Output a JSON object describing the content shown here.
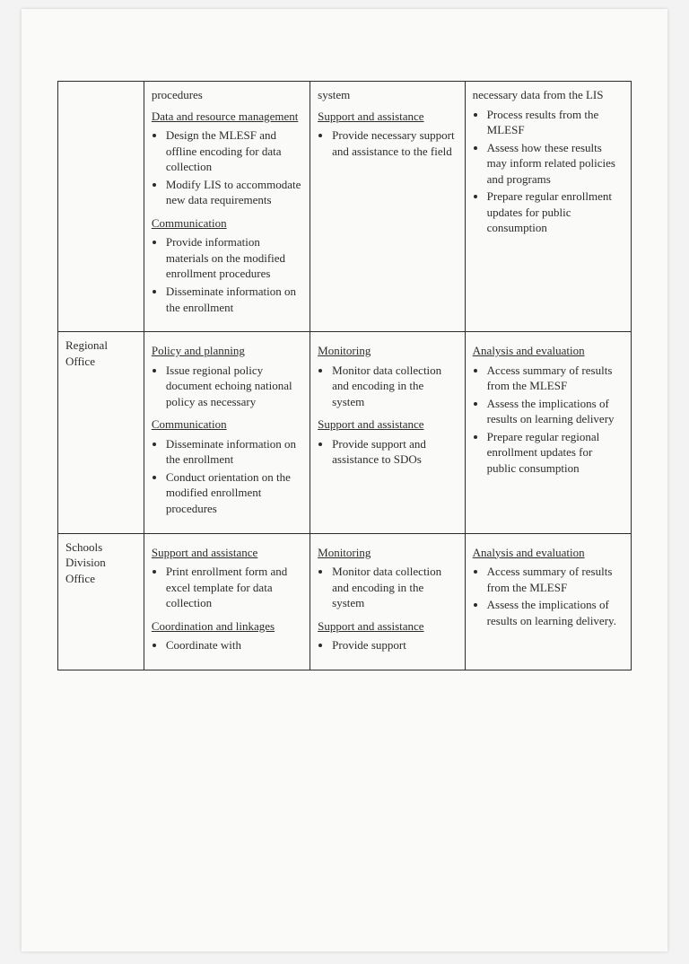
{
  "type": "table",
  "page_background": "#fafaf8",
  "border_color": "#2c2c2c",
  "text_color": "#2c2c2c",
  "font_family": "Georgia, serif",
  "font_size_pt": 10,
  "columns_pct": [
    15,
    29,
    27,
    29
  ],
  "rows": [
    {
      "office": "",
      "col1": {
        "lead": "procedures",
        "sections": [
          {
            "heading": "Data and resource management",
            "items": [
              "Design the MLESF and offline encoding for data collection",
              "Modify LIS to accommodate new data requirements"
            ]
          },
          {
            "heading": "Communication",
            "items": [
              "Provide information materials on the modified enrollment procedures",
              "Disseminate information on the enrollment"
            ]
          }
        ]
      },
      "col2": {
        "lead": "system",
        "sections": [
          {
            "heading": "Support and assistance",
            "items": [
              "Provide necessary support and assistance to the field"
            ]
          }
        ]
      },
      "col3": {
        "lead": "necessary data from the LIS",
        "lead_items": [
          "Process results from the MLESF",
          "Assess how these results may inform related policies and programs",
          "Prepare regular enrollment updates for public consumption"
        ],
        "sections": []
      }
    },
    {
      "office": "Regional Office",
      "col1": {
        "sections": [
          {
            "heading": "Policy and planning",
            "items": [
              "Issue regional policy document echoing national policy as necessary"
            ]
          },
          {
            "heading": "Communication",
            "items": [
              "Disseminate information on the enrollment",
              "Conduct orientation on the modified enrollment procedures"
            ]
          }
        ]
      },
      "col2": {
        "sections": [
          {
            "heading": "Monitoring",
            "items": [
              "Monitor data collection and encoding in the system"
            ]
          },
          {
            "heading": "Support and assistance",
            "items": [
              "Provide support and assistance to SDOs"
            ]
          }
        ]
      },
      "col3": {
        "sections": [
          {
            "heading": "Analysis and evaluation",
            "items": [
              "Access summary of results from the MLESF",
              "Assess the implications of results on learning delivery",
              "Prepare regular regional enrollment updates for public consumption"
            ]
          }
        ]
      }
    },
    {
      "office": "Schools Division Office",
      "col1": {
        "sections": [
          {
            "heading": "Support and assistance",
            "items": [
              "Print enrollment form and excel template for data collection"
            ]
          },
          {
            "heading": "Coordination and linkages",
            "items": [
              "Coordinate with"
            ]
          }
        ]
      },
      "col2": {
        "sections": [
          {
            "heading": "Monitoring",
            "items": [
              "Monitor data collection and encoding in the system"
            ]
          },
          {
            "heading": "Support and assistance",
            "items": [
              "Provide support"
            ]
          }
        ]
      },
      "col3": {
        "sections": [
          {
            "heading": "Analysis and evaluation",
            "items": [
              "Access summary of results from the MLESF",
              "Assess the implications of results on learning delivery."
            ]
          }
        ]
      }
    }
  ]
}
